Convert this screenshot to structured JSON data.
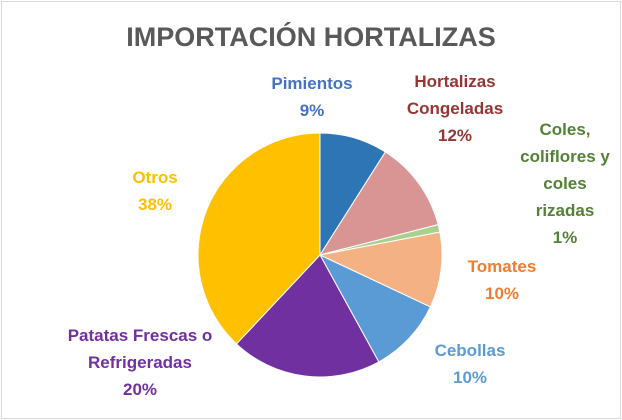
{
  "chart_data": {
    "type": "pie",
    "title": "IMPORTACIÓN HORTALIZAS",
    "categories": [
      "Pimientos",
      "Hortalizas Congeladas",
      "Coles, coliflores y coles rizadas",
      "Tomates",
      "Cebollas",
      "Patatas Frescas o Refrigeradas",
      "Otros"
    ],
    "values": [
      9,
      12,
      1,
      10,
      10,
      20,
      38
    ],
    "value_labels": [
      "9%",
      "12%",
      "1%",
      "10%",
      "10%",
      "20%",
      "38%"
    ],
    "colors": [
      "#2e75b6",
      "#d99594",
      "#a9d18e",
      "#f4b183",
      "#5b9bd5",
      "#7030a0",
      "#ffc000"
    ],
    "label_colors": [
      "#4472c4",
      "#943634",
      "#538135",
      "#ed7d31",
      "#5b9bd5",
      "#7030a0",
      "#ffc000"
    ]
  }
}
